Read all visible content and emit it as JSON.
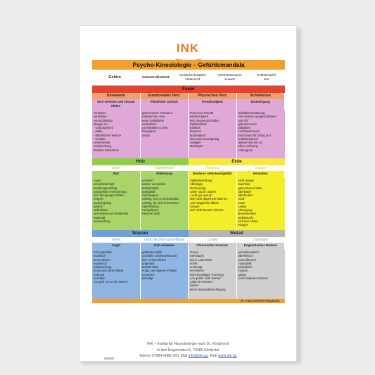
{
  "logo": "INK",
  "title": "Psycho-Kinesiologie – Gefühlsmandala",
  "header": {
    "first": "Gehirn",
    "cols": [
      "Unkontrolliertheit",
      "Gedankenlosigkeit\nenttäuscht",
      "Gefühlsstwegnet\nverwirrt",
      "Selbstzweifel\nstur"
    ]
  },
  "feuer": {
    "band": "Feuer",
    "organs": [
      "Dünndarm",
      "Emotionelles Herz",
      "Physisches Herz",
      "Schilddrüse"
    ],
    "subs": [
      "Sich verloren und einsam fühlen",
      "Plötzlicher Schock",
      "Freudlosigkeit",
      "Erniedrigung"
    ],
    "lists": [
      "verlassen\nverstoßen\nvernachlässigt\nMangel an:\n- Geborgenheit\n- Nähe\n- Mütterlicher Wärme\n- Kontakt\nUnsicherheit\nLiebesentzug\ndunkles Geheimnis",
      "gebrochenes Vertrauen\nenttäuschte Liebe\nkeine Selbstliebe\nVerletztheit\nvorenthaltene Liebe\nTraurigkeit\nVerrat",
      "Furcht vor Freude\nHartherzigkeit\nsich ausgenutzt fühlen\nSelbstschutz\nEitelkeit\nIdeenlos\nbürokratisch\nstur und unnachgiebig\nGeldgier\nMachtgier",
      "Selbstbeschränkung\nvon anderen ausgeschlossen\n„nie ich“\ngehemmt sein\naufgeben\nzurückweichend\nkein Raum für Erfolg und\nSelbstausdruck\n„keiner hört mir zu“\nohne Hoffnung\nverleugnen"
    ]
  },
  "holz": {
    "band": "Holz",
    "organs": [
      "Leber",
      "Gallenblase"
    ],
    "subs": [
      "Wut",
      "Ablehnung"
    ],
    "lists": [
      "Ärger\nUnzufriedenheit\nhandlungsunfähig\nmangelnde Anerkennung\nsich übergangen fühlen\nnörgeln\nunnachgiebig\nkritisch\nSelbsthass\nVermeiden von Problemen\nirrational\nVerzweiflung",
      "verbittert\nandere verurteilen\nSelbstmitleid\nzwanghaft\nnachtragend\nunfähig, sich zu entscheiden\nunfähig, für sich einzustehen\nOpferhaltung\nmanipulieren\nFalscher Stolz"
    ]
  },
  "erde": {
    "band": "Erde",
    "organs": [
      "Pankreas",
      "Magen"
    ],
    "subs": [
      "Niederes Selbstwertgefühl",
      "Heimatlos"
    ],
    "lists": [
      "Selbstbestrafung\nAbhängig\nüberbesorgt\nLeben durch andere\n„nicht gut genug“\nsich nicht abgrenzen können\n„sich abgelehnt fühlen\nSorgen\nsich nicht trennen können",
      "nicht mögen\nmachtlos\ngebrochener Wille\nüberlastet\nüberfordert\nGroll\nHass\nlustlos\nAbneigung\nBesessenheit\nSelbstsucht\nsich leer fühlen\nHunger"
    ]
  },
  "wasser": {
    "band": "Wasser",
    "organs": [
      "Niere",
      "Geschlechtsorgane/Blase"
    ],
    "subs": [
      "Angst",
      "Sich schämen"
    ],
    "lists": [
      "Schuldgefühle\nmachtlos\ndemoralisiert\negoistisch\nEntläuschung\nbrutal und ohne Mitleid\nSchreck\nbetroffen\n„es geht mir an die Nieren“",
      "gelähmter Wille\nunerfüllte Liebessehnsucht\nsich verletzt fühlen\nUngeduld\nSelbstmitleid\nAngst, auf eigenen Füssen\nzu stehen\nbeleidigt"
    ]
  },
  "metall": {
    "band": "Metall",
    "organs": [
      "Lunge",
      "Dickdarm"
    ],
    "subs": [
      "Chronischer Kummer",
      "Dogmatisches Denken"
    ],
    "lists": [
      "Trauer\nSehnsucht\nkeine Lebenslust\nunfrei\nentmutigt\nverzweifelt\nnicht bewältigte Trennung\n„ich gehör' nicht hierher“\n„alles ist verloren“\nisoliert\nkeine Daseinsberechtigung",
      "perfektionistisch\nüberkritisch\nkontrollierend\nzwanghaft\npedantisch\nzynisch\ngeizig\nnicht loslassen können"
    ]
  },
  "author": "Dr. med. Dietrich Klinghardt",
  "footer": {
    "line1": "INK – Institut für Neurobiologie nach Dr. Klinghardt",
    "line2": "In den Engematten 5, 79286 Glottertal",
    "line3_prefix": "Telefon 07684-9088-360, Mail",
    "mail": "info@ink.ag",
    "web_prefix": ", Web",
    "web": "www.ink.ag"
  },
  "colors": {
    "accent": "#e57a1f",
    "title": "#f0a02c",
    "feuer_band": "#e8412f",
    "feuer_organ": "#f0a06a",
    "feuer_fill": "#e0a8d6",
    "holz_band": "#8fcf47",
    "holz_fill": "#a9d46a",
    "erde_band": "#f6e93a",
    "erde_fill": "#f3ed2a",
    "wasser_band": "#6fa0d8",
    "wasser_fill": "#8fb6e2",
    "metall_band": "#b5b5b5",
    "metall_fill": "#cfcfcf"
  }
}
